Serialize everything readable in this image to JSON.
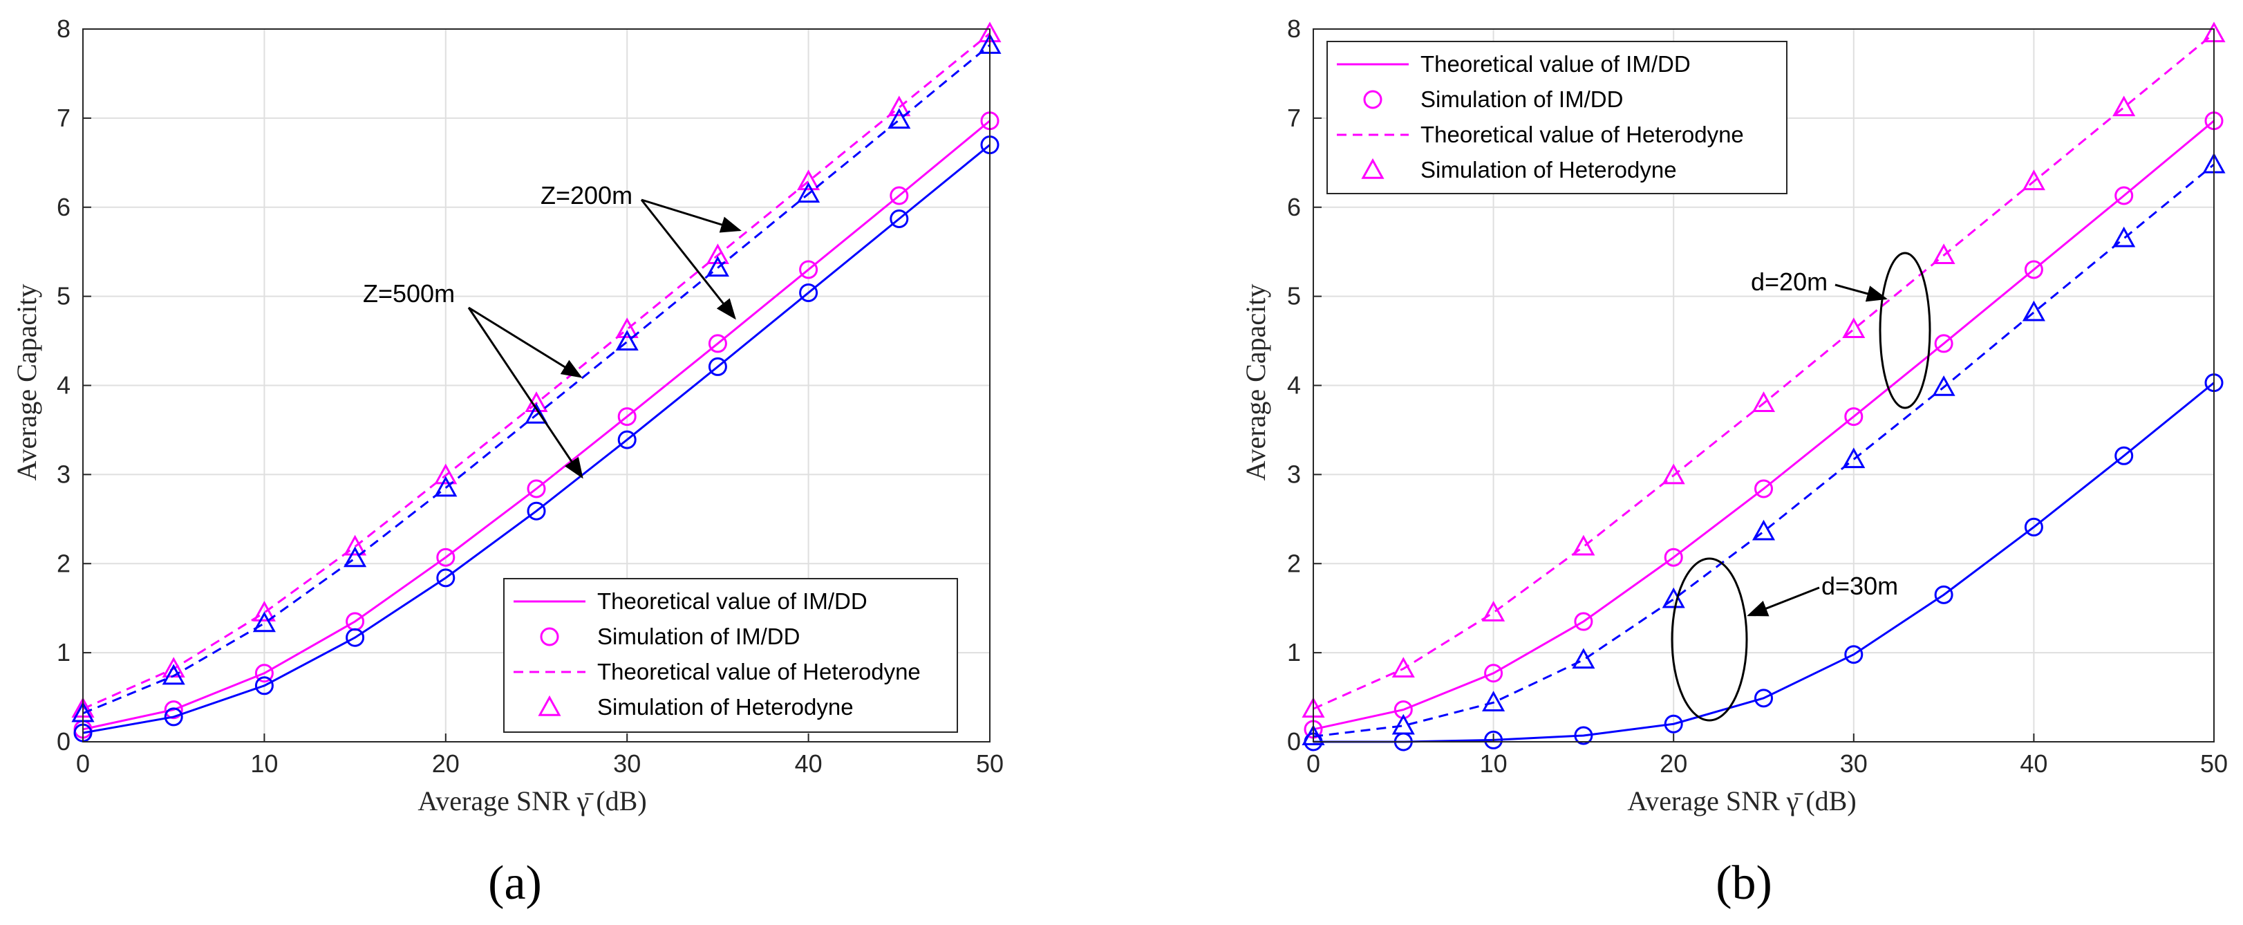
{
  "colors": {
    "magenta": "#ff00ff",
    "blue": "#0000ff",
    "grid": "#dfdfdf",
    "axis": "#262626"
  },
  "legend_entries": [
    {
      "label": "Theoretical value of IM/DD",
      "style": "solid",
      "color": "#ff00ff",
      "marker": "none"
    },
    {
      "label": "Simulation of IM/DD",
      "style": "none",
      "color": "#ff00ff",
      "marker": "circle"
    },
    {
      "label": "Theoretical value of Heterodyne",
      "style": "dashed",
      "color": "#ff00ff",
      "marker": "none"
    },
    {
      "label": "Simulation of Heterodyne",
      "style": "none",
      "color": "#ff00ff",
      "marker": "triangle"
    }
  ],
  "chart_data": [
    {
      "type": "line",
      "panel": "(a)",
      "xlabel": "Average SNR γ̄ (dB)",
      "ylabel": "Average Capacity",
      "xlim": [
        0,
        50
      ],
      "ylim": [
        0,
        8
      ],
      "xticks": [
        "0",
        "10",
        "20",
        "30",
        "40",
        "50"
      ],
      "yticks": [
        "0",
        "1",
        "2",
        "3",
        "4",
        "5",
        "6",
        "7",
        "8"
      ],
      "grid": true,
      "legend_position": "bottom-right",
      "annotations": [
        "Z=200m",
        "Z=500m"
      ],
      "x": [
        0,
        5,
        10,
        15,
        20,
        25,
        30,
        35,
        40,
        45,
        50
      ],
      "series": [
        {
          "name": "IM/DD Z=200m",
          "color": "#ff00ff",
          "style": "solid",
          "marker": "circle",
          "values": [
            0.14,
            0.36,
            0.77,
            1.35,
            2.07,
            2.84,
            3.65,
            4.47,
            5.3,
            6.13,
            6.97
          ]
        },
        {
          "name": "IM/DD Z=500m",
          "color": "#0000ff",
          "style": "solid",
          "marker": "circle",
          "values": [
            0.1,
            0.28,
            0.63,
            1.17,
            1.84,
            2.59,
            3.39,
            4.21,
            5.04,
            5.87,
            6.7
          ]
        },
        {
          "name": "Heterodyne Z=200m",
          "color": "#ff00ff",
          "style": "dashed",
          "marker": "triangle",
          "values": [
            0.37,
            0.82,
            1.45,
            2.19,
            2.99,
            3.8,
            4.63,
            5.46,
            6.29,
            7.12,
            7.95
          ]
        },
        {
          "name": "Heterodyne Z=500m",
          "color": "#0000ff",
          "style": "dashed",
          "marker": "triangle",
          "values": [
            0.32,
            0.74,
            1.33,
            2.06,
            2.85,
            3.67,
            4.49,
            5.32,
            6.15,
            6.98,
            7.82
          ]
        }
      ]
    },
    {
      "type": "line",
      "panel": "(b)",
      "xlabel": "Average SNR γ̄ (dB)",
      "ylabel": "Average Capacity",
      "xlim": [
        0,
        50
      ],
      "ylim": [
        0,
        8
      ],
      "xticks": [
        "0",
        "10",
        "20",
        "30",
        "40",
        "50"
      ],
      "yticks": [
        "0",
        "1",
        "2",
        "3",
        "4",
        "5",
        "6",
        "7",
        "8"
      ],
      "grid": true,
      "legend_position": "top-left",
      "annotations": [
        "d=20m",
        "d=30m"
      ],
      "x": [
        0,
        5,
        10,
        15,
        20,
        25,
        30,
        35,
        40,
        45,
        50
      ],
      "series": [
        {
          "name": "IM/DD d=20m",
          "color": "#ff00ff",
          "style": "solid",
          "marker": "circle",
          "values": [
            0.14,
            0.36,
            0.77,
            1.35,
            2.07,
            2.84,
            3.65,
            4.47,
            5.3,
            6.13,
            6.97
          ]
        },
        {
          "name": "IM/DD d=30m",
          "color": "#0000ff",
          "style": "solid",
          "marker": "circle",
          "values": [
            0.0,
            0.0,
            0.02,
            0.07,
            0.2,
            0.49,
            0.98,
            1.65,
            2.41,
            3.21,
            4.03
          ]
        },
        {
          "name": "Heterodyne d=20m",
          "color": "#ff00ff",
          "style": "dashed",
          "marker": "triangle",
          "values": [
            0.37,
            0.82,
            1.45,
            2.19,
            2.99,
            3.8,
            4.63,
            5.46,
            6.29,
            7.12,
            7.95
          ]
        },
        {
          "name": "Heterodyne d=30m",
          "color": "#0000ff",
          "style": "dashed",
          "marker": "triangle",
          "values": [
            0.06,
            0.18,
            0.44,
            0.92,
            1.6,
            2.36,
            3.17,
            3.98,
            4.82,
            5.65,
            6.48
          ]
        }
      ]
    }
  ]
}
